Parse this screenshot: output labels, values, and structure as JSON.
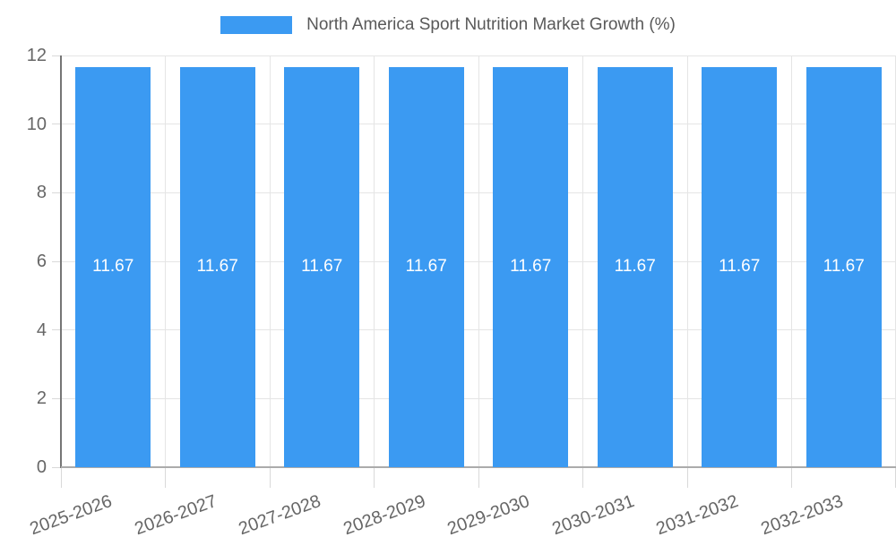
{
  "legend": {
    "items": [
      {
        "label": "North America Sport Nutrition Market Growth (%)",
        "color": "#3b9af2"
      }
    ]
  },
  "chart_data": {
    "type": "bar",
    "title": "North America Sport Nutrition Market Growth (%)",
    "categories": [
      "2025-2026",
      "2026-2027",
      "2027-2028",
      "2028-2029",
      "2029-2030",
      "2030-2031",
      "2031-2032",
      "2032-2033"
    ],
    "values": [
      11.67,
      11.67,
      11.67,
      11.67,
      11.67,
      11.67,
      11.67,
      11.67
    ],
    "value_labels": [
      "11.67",
      "11.67",
      "11.67",
      "11.67",
      "11.67",
      "11.67",
      "11.67",
      "11.67"
    ],
    "xlabel": "",
    "ylabel": "",
    "ylim": [
      0,
      12
    ],
    "yticks": [
      0,
      2,
      4,
      6,
      8,
      10,
      12
    ],
    "grid": true,
    "legend_position": "top",
    "bar_color": "#3b9af2",
    "value_label_color": "#ffffff",
    "axis_text_color": "#666666",
    "gridline_color": "#e5e5e5"
  }
}
